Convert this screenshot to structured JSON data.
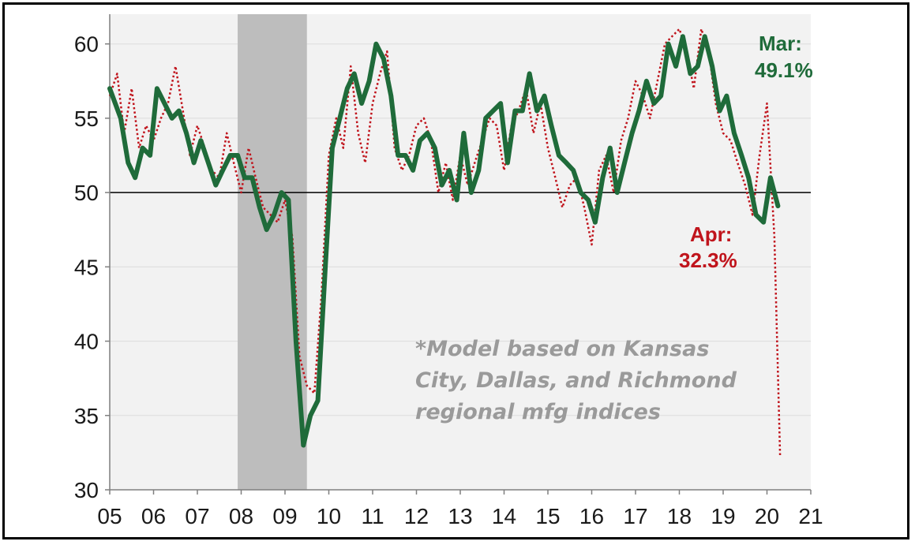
{
  "chart_data": {
    "type": "line",
    "x_tick_labels": [
      "05",
      "06",
      "07",
      "08",
      "09",
      "10",
      "11",
      "12",
      "13",
      "14",
      "15",
      "16",
      "17",
      "18",
      "19",
      "20",
      "21"
    ],
    "y_tick_labels": [
      "30",
      "35",
      "40",
      "45",
      "50",
      "55",
      "60"
    ],
    "ylim": [
      30,
      62
    ],
    "xlim": [
      2005,
      2021
    ],
    "reference_line": 50,
    "shaded_recession": [
      2007.92,
      2009.5
    ],
    "grid": "horizontal",
    "series": [
      {
        "style": "solid-green",
        "color": "#1f6b3a",
        "points": [
          [
            2005.0,
            57.0
          ],
          [
            2005.25,
            55.0
          ],
          [
            2005.42,
            52.0
          ],
          [
            2005.58,
            51.0
          ],
          [
            2005.75,
            53.0
          ],
          [
            2005.92,
            52.5
          ],
          [
            2006.08,
            57.0
          ],
          [
            2006.25,
            56.0
          ],
          [
            2006.42,
            55.0
          ],
          [
            2006.58,
            55.5
          ],
          [
            2006.75,
            54.0
          ],
          [
            2006.92,
            52.0
          ],
          [
            2007.08,
            53.5
          ],
          [
            2007.25,
            52.0
          ],
          [
            2007.42,
            50.5
          ],
          [
            2007.58,
            51.5
          ],
          [
            2007.75,
            52.5
          ],
          [
            2007.92,
            52.5
          ],
          [
            2008.08,
            51.0
          ],
          [
            2008.25,
            51.0
          ],
          [
            2008.42,
            49.0
          ],
          [
            2008.58,
            47.5
          ],
          [
            2008.75,
            48.5
          ],
          [
            2008.92,
            50.0
          ],
          [
            2009.08,
            49.5
          ],
          [
            2009.25,
            40.0
          ],
          [
            2009.42,
            33.0
          ],
          [
            2009.58,
            35.0
          ],
          [
            2009.75,
            36.0
          ],
          [
            2009.92,
            45.0
          ],
          [
            2010.08,
            53.0
          ],
          [
            2010.25,
            55.0
          ],
          [
            2010.42,
            57.0
          ],
          [
            2010.58,
            58.0
          ],
          [
            2010.75,
            56.0
          ],
          [
            2010.92,
            57.5
          ],
          [
            2011.08,
            60.0
          ],
          [
            2011.25,
            59.0
          ],
          [
            2011.42,
            56.5
          ],
          [
            2011.58,
            52.5
          ],
          [
            2011.75,
            52.5
          ],
          [
            2011.92,
            51.5
          ],
          [
            2012.08,
            53.5
          ],
          [
            2012.25,
            54.0
          ],
          [
            2012.42,
            53.0
          ],
          [
            2012.58,
            50.5
          ],
          [
            2012.75,
            51.5
          ],
          [
            2012.92,
            49.5
          ],
          [
            2013.08,
            54.0
          ],
          [
            2013.25,
            50.0
          ],
          [
            2013.42,
            51.5
          ],
          [
            2013.58,
            55.0
          ],
          [
            2013.75,
            55.5
          ],
          [
            2013.92,
            56.0
          ],
          [
            2014.08,
            52.0
          ],
          [
            2014.25,
            55.5
          ],
          [
            2014.42,
            55.5
          ],
          [
            2014.58,
            58.0
          ],
          [
            2014.75,
            55.5
          ],
          [
            2014.92,
            56.5
          ],
          [
            2015.08,
            54.5
          ],
          [
            2015.25,
            52.5
          ],
          [
            2015.42,
            52.0
          ],
          [
            2015.58,
            51.5
          ],
          [
            2015.75,
            50.0
          ],
          [
            2015.92,
            49.5
          ],
          [
            2016.08,
            48.0
          ],
          [
            2016.25,
            51.0
          ],
          [
            2016.42,
            53.0
          ],
          [
            2016.58,
            50.0
          ],
          [
            2016.75,
            52.0
          ],
          [
            2016.92,
            54.0
          ],
          [
            2017.08,
            55.5
          ],
          [
            2017.25,
            57.5
          ],
          [
            2017.42,
            56.0
          ],
          [
            2017.58,
            56.5
          ],
          [
            2017.75,
            60.0
          ],
          [
            2017.92,
            58.5
          ],
          [
            2018.08,
            60.5
          ],
          [
            2018.25,
            58.0
          ],
          [
            2018.42,
            58.5
          ],
          [
            2018.58,
            60.5
          ],
          [
            2018.75,
            58.5
          ],
          [
            2018.92,
            55.5
          ],
          [
            2019.08,
            56.5
          ],
          [
            2019.25,
            54.0
          ],
          [
            2019.42,
            52.5
          ],
          [
            2019.58,
            51.0
          ],
          [
            2019.75,
            48.5
          ],
          [
            2019.92,
            48.0
          ],
          [
            2020.08,
            51.0
          ],
          [
            2020.25,
            49.1
          ]
        ]
      },
      {
        "style": "dotted-red",
        "color": "#c0141c",
        "points": [
          [
            2005.0,
            56.5
          ],
          [
            2005.17,
            58.0
          ],
          [
            2005.33,
            54.0
          ],
          [
            2005.5,
            57.0
          ],
          [
            2005.67,
            53.0
          ],
          [
            2005.83,
            54.5
          ],
          [
            2006.0,
            53.5
          ],
          [
            2006.17,
            55.0
          ],
          [
            2006.33,
            56.0
          ],
          [
            2006.5,
            58.5
          ],
          [
            2006.67,
            55.5
          ],
          [
            2006.83,
            52.5
          ],
          [
            2007.0,
            54.5
          ],
          [
            2007.17,
            53.0
          ],
          [
            2007.33,
            51.5
          ],
          [
            2007.5,
            51.0
          ],
          [
            2007.67,
            54.0
          ],
          [
            2007.83,
            52.0
          ],
          [
            2008.0,
            50.0
          ],
          [
            2008.17,
            53.0
          ],
          [
            2008.33,
            51.0
          ],
          [
            2008.5,
            49.0
          ],
          [
            2008.67,
            48.5
          ],
          [
            2008.83,
            48.0
          ],
          [
            2009.0,
            49.5
          ],
          [
            2009.17,
            47.0
          ],
          [
            2009.33,
            39.0
          ],
          [
            2009.5,
            37.0
          ],
          [
            2009.67,
            36.5
          ],
          [
            2009.83,
            43.0
          ],
          [
            2010.0,
            52.5
          ],
          [
            2010.17,
            55.0
          ],
          [
            2010.33,
            53.0
          ],
          [
            2010.5,
            58.5
          ],
          [
            2010.67,
            54.0
          ],
          [
            2010.83,
            52.0
          ],
          [
            2011.0,
            56.0
          ],
          [
            2011.17,
            58.0
          ],
          [
            2011.33,
            59.5
          ],
          [
            2011.5,
            53.0
          ],
          [
            2011.67,
            51.5
          ],
          [
            2011.83,
            52.5
          ],
          [
            2012.0,
            54.5
          ],
          [
            2012.17,
            55.0
          ],
          [
            2012.33,
            53.5
          ],
          [
            2012.5,
            50.0
          ],
          [
            2012.67,
            52.0
          ],
          [
            2012.83,
            49.5
          ],
          [
            2013.0,
            52.5
          ],
          [
            2013.17,
            50.5
          ],
          [
            2013.33,
            52.0
          ],
          [
            2013.5,
            53.5
          ],
          [
            2013.67,
            55.0
          ],
          [
            2013.83,
            54.5
          ],
          [
            2014.0,
            51.5
          ],
          [
            2014.17,
            54.5
          ],
          [
            2014.33,
            55.5
          ],
          [
            2014.5,
            57.0
          ],
          [
            2014.67,
            54.0
          ],
          [
            2014.83,
            56.0
          ],
          [
            2015.0,
            53.0
          ],
          [
            2015.17,
            51.0
          ],
          [
            2015.33,
            49.0
          ],
          [
            2015.5,
            50.5
          ],
          [
            2015.67,
            51.0
          ],
          [
            2015.83,
            49.0
          ],
          [
            2016.0,
            46.5
          ],
          [
            2016.17,
            51.5
          ],
          [
            2016.33,
            52.5
          ],
          [
            2016.5,
            50.0
          ],
          [
            2016.67,
            53.5
          ],
          [
            2016.83,
            55.0
          ],
          [
            2017.0,
            57.5
          ],
          [
            2017.17,
            56.5
          ],
          [
            2017.33,
            55.0
          ],
          [
            2017.5,
            57.5
          ],
          [
            2017.67,
            60.0
          ],
          [
            2017.83,
            60.5
          ],
          [
            2018.0,
            61.0
          ],
          [
            2018.17,
            59.5
          ],
          [
            2018.33,
            57.0
          ],
          [
            2018.5,
            61.0
          ],
          [
            2018.67,
            59.5
          ],
          [
            2018.83,
            56.0
          ],
          [
            2019.0,
            54.0
          ],
          [
            2019.17,
            53.5
          ],
          [
            2019.33,
            52.0
          ],
          [
            2019.5,
            50.5
          ],
          [
            2019.67,
            48.5
          ],
          [
            2019.83,
            52.5
          ],
          [
            2020.0,
            56.0
          ],
          [
            2020.17,
            47.0
          ],
          [
            2020.3,
            32.3
          ]
        ]
      }
    ],
    "annotations": {
      "mar_label": "Mar:",
      "mar_value": "49.1%",
      "apr_label": "Apr:",
      "apr_value": "32.3%",
      "note_lines": [
        "*Model based on Kansas",
        "City, Dallas, and Richmond",
        "regional mfg indices"
      ]
    }
  }
}
